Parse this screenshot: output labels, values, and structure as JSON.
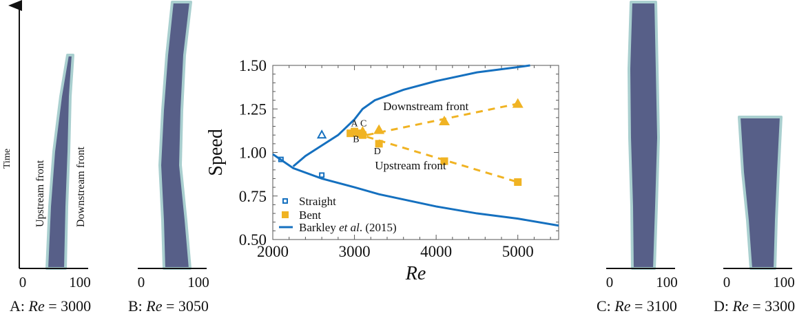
{
  "panels": [
    {
      "id": "A",
      "caption_prefix": "A: ",
      "caption_var": "Re",
      "caption_eq": " = 3000",
      "tick0": "0",
      "tick1": "100",
      "time_label": "Time",
      "upstream_label": "Upstream front",
      "downstream_label": "Downstream front"
    },
    {
      "id": "B",
      "caption_prefix": "B: ",
      "caption_var": "Re",
      "caption_eq": " = 3050",
      "tick0": "0",
      "tick1": "100"
    },
    {
      "id": "C",
      "caption_prefix": "C: ",
      "caption_var": "Re",
      "caption_eq": " = 3100",
      "tick0": "0",
      "tick1": "100"
    },
    {
      "id": "D",
      "caption_prefix": "D: ",
      "caption_var": "Re",
      "caption_eq": " = 3300",
      "tick0": "0",
      "tick1": "100"
    }
  ],
  "colors": {
    "blue": "#1570bf",
    "orange": "#f0b323",
    "spacetime": "#4e5682",
    "spacetime_edge": "#a9cfcf"
  },
  "chart_data": {
    "type": "scatter",
    "xlabel": "Re",
    "ylabel": "Speed",
    "xlim": [
      2000,
      5500
    ],
    "ylim": [
      0.5,
      1.5
    ],
    "xticks": [
      "2000",
      "3000",
      "4000",
      "5000"
    ],
    "yticks": [
      "0.50",
      "0.75",
      "1.00",
      "1.25",
      "1.50"
    ],
    "legend_position": "bottom-left",
    "series": [
      {
        "name": "Straight",
        "marker": "open-square",
        "color": "#1570bf",
        "points": [
          [
            2100,
            0.96
          ],
          [
            2600,
            0.87
          ]
        ]
      },
      {
        "name": "",
        "marker": "open-triangle",
        "color": "#1570bf",
        "points": [
          [
            2600,
            1.1
          ]
        ]
      },
      {
        "name": "Bent",
        "marker": "filled-square",
        "color": "#f0b323",
        "points": [
          [
            2950,
            1.11
          ],
          [
            3000,
            1.12
          ],
          [
            3050,
            1.11
          ],
          [
            3100,
            1.1
          ],
          [
            3300,
            1.05
          ],
          [
            4100,
            0.95
          ],
          [
            5000,
            0.83
          ]
        ]
      },
      {
        "name": "",
        "marker": "filled-triangle",
        "color": "#f0b323",
        "points": [
          [
            3100,
            1.12
          ],
          [
            3300,
            1.13
          ],
          [
            4100,
            1.18
          ],
          [
            5000,
            1.28
          ]
        ]
      },
      {
        "name": "Barkley et al. (2015)",
        "marker": "line",
        "color": "#1570bf",
        "points": [
          [
            2250,
            0.92
          ],
          [
            2400,
            0.98
          ],
          [
            2600,
            1.04
          ],
          [
            2800,
            1.1
          ],
          [
            3000,
            1.19
          ],
          [
            3100,
            1.25
          ],
          [
            3250,
            1.3
          ],
          [
            3600,
            1.36
          ],
          [
            4000,
            1.41
          ],
          [
            4500,
            1.46
          ],
          [
            5000,
            1.49
          ],
          [
            5150,
            1.5
          ]
        ]
      },
      {
        "name": "",
        "marker": "line",
        "color": "#1570bf",
        "points": [
          [
            2000,
            0.99
          ],
          [
            2250,
            0.91
          ],
          [
            2600,
            0.85
          ],
          [
            3000,
            0.8
          ],
          [
            3300,
            0.76
          ],
          [
            4000,
            0.69
          ],
          [
            4500,
            0.65
          ],
          [
            5000,
            0.62
          ],
          [
            5500,
            0.58
          ]
        ]
      }
    ],
    "dashed_fits": [
      {
        "color": "#f0b323",
        "points": [
          [
            3150,
            1.1
          ],
          [
            5000,
            1.28
          ]
        ]
      },
      {
        "color": "#f0b323",
        "points": [
          [
            3150,
            1.09
          ],
          [
            5000,
            0.83
          ]
        ]
      }
    ],
    "annotations": [
      {
        "text": "Downstream front",
        "x": 3350,
        "y": 1.29
      },
      {
        "text": "Upstream front",
        "x": 3250,
        "y": 0.95
      },
      {
        "text": "A",
        "x": 3000,
        "y": 1.15,
        "small": true
      },
      {
        "text": "C",
        "x": 3110,
        "y": 1.15,
        "small": true
      },
      {
        "text": "B",
        "x": 3020,
        "y": 1.06,
        "small": true
      },
      {
        "text": "D",
        "x": 3280,
        "y": 0.99,
        "small": true
      }
    ],
    "legend": {
      "straight": "Straight",
      "bent": "Bent",
      "barkley_pre": "Barkley ",
      "barkley_it": "et al",
      "barkley_post": ". (2015)"
    }
  }
}
